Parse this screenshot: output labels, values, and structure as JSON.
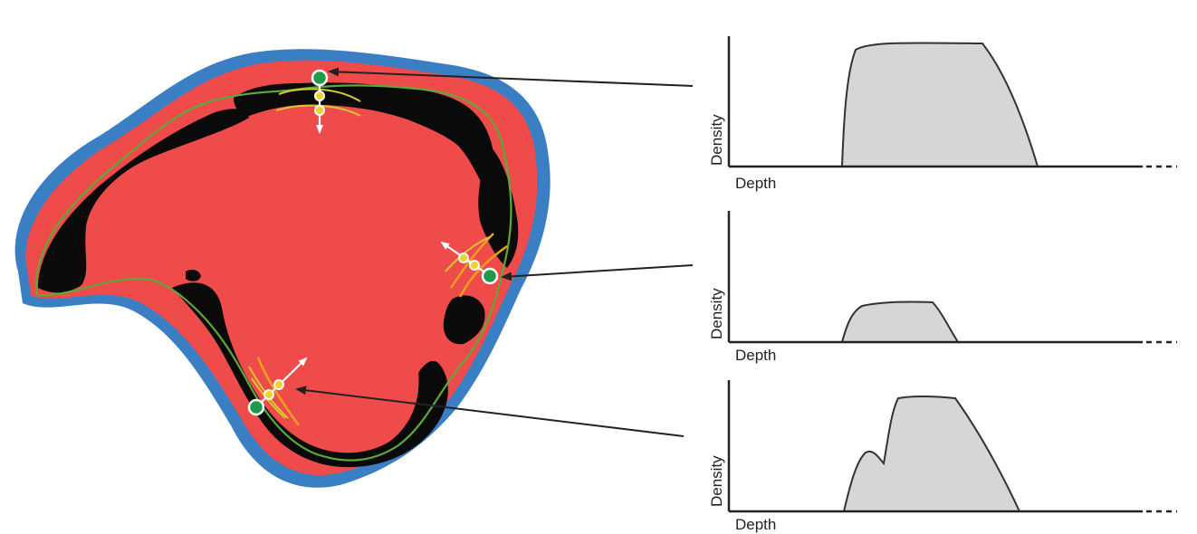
{
  "colors": {
    "outer_band": "#3a7fc4",
    "red_region": "#ef4b4b",
    "black_tissue": "#0a0a0a",
    "green_contour": "#5fa83a",
    "green_marker": "#1f9a4a",
    "yellow_point": "#f2d22a",
    "orange_curve": "#f0a020",
    "yellow_curve": "#d6c832",
    "profile_fill": "#d6d6d8",
    "profile_stroke": "#333333"
  },
  "panels": [
    {
      "ylabel": "Density",
      "xlabel": "Depth",
      "shape": "broad-plateau"
    },
    {
      "ylabel": "Density",
      "xlabel": "Depth",
      "shape": "small-plateau"
    },
    {
      "ylabel": "Density",
      "xlabel": "Depth",
      "shape": "double-peak"
    }
  ]
}
